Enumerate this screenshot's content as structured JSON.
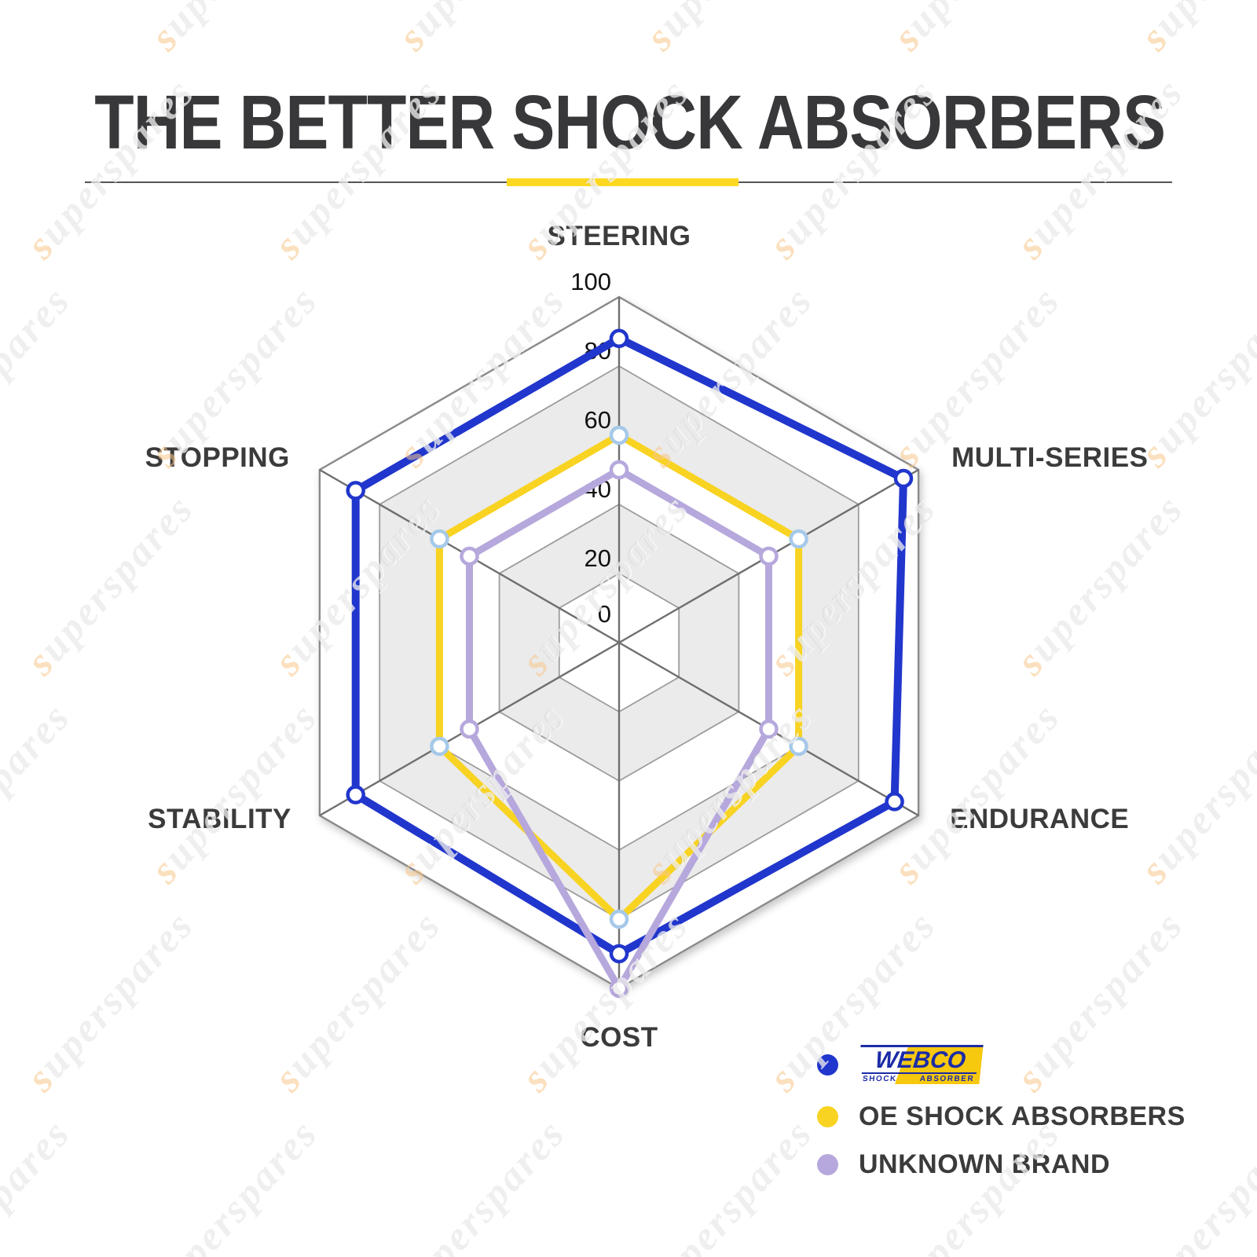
{
  "title": "THE BETTER SHOCK ABSORBERS",
  "watermark": {
    "text": "superspares"
  },
  "colors": {
    "background": "#ffffff",
    "title_text": "#38383b",
    "divider_line": "#555555",
    "divider_accent": "#fdd820",
    "axis_label_text": "#3b3b3b",
    "tick_text": "#111111",
    "grid_ring": "#9c9c9c",
    "grid_ring_outer": "#8a8a8a",
    "grid_spoke": "#6f6f6f",
    "ring_fill": "#ffffff",
    "ring_fill_alt": "#ebebeb",
    "legend_text": "#3b3b3b",
    "webco_blue": "#1c2ca6",
    "webco_yellow": "#f6c80e"
  },
  "chart_data": {
    "type": "radar",
    "categories": [
      "STEERING",
      "MULTI-SERIES",
      "ENDURANCE",
      "COST",
      "STABILITY",
      "STOPPING"
    ],
    "ticks": [
      0,
      20,
      40,
      60,
      80,
      100
    ],
    "axis_range": [
      0,
      100
    ],
    "grid": true,
    "legend_position": "bottom-right",
    "series": [
      {
        "name": "WEBCO",
        "color": "#2136cc",
        "marker_color": "#2136cc",
        "values": [
          88,
          95,
          92,
          90,
          88,
          88
        ]
      },
      {
        "name": "OE SHOCK ABSORBERS",
        "color": "#f8d322",
        "marker_color": "#a6c9e9",
        "values": [
          60,
          60,
          60,
          80,
          60,
          60
        ]
      },
      {
        "name": "UNKNOWN BRAND",
        "color": "#b6a8dc",
        "marker_color": "#b6a8dc",
        "values": [
          50,
          50,
          50,
          100,
          50,
          50
        ]
      }
    ]
  },
  "legend": {
    "items": [
      {
        "dot_color": "#2136cc",
        "brand": "WEBCO",
        "sub_left": "SHOCK",
        "sub_right": "ABSORBER"
      },
      {
        "dot_color": "#f8d322",
        "label": "OE SHOCK ABSORBERS"
      },
      {
        "dot_color": "#b6a8dc",
        "label": "UNKNOWN BRAND"
      }
    ]
  }
}
